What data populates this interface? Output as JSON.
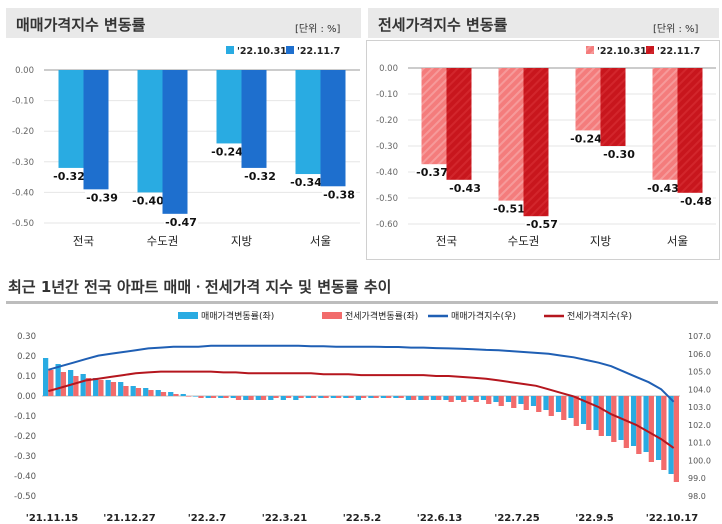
{
  "chart_data": [
    {
      "type": "bar",
      "title": "매매가격지수 변동률",
      "unit": "[단위 : %]",
      "categories": [
        "전국",
        "수도권",
        "지방",
        "서울"
      ],
      "series": [
        {
          "name": "'22.10.31",
          "values": [
            -0.32,
            -0.4,
            -0.24,
            -0.34
          ],
          "color": "#29abe2"
        },
        {
          "name": "'22.11.7",
          "values": [
            -0.39,
            -0.47,
            -0.32,
            -0.38
          ],
          "color": "#1e6fce"
        }
      ],
      "ylim": [
        -0.5,
        0.0
      ],
      "yticks": [
        "0.00",
        "-0.10",
        "-0.20",
        "-0.30",
        "-0.40",
        "-0.50"
      ],
      "legend": "top-right"
    },
    {
      "type": "bar",
      "title": "전세가격지수 변동률",
      "unit": "[단위 : %]",
      "categories": [
        "전국",
        "수도권",
        "지방",
        "서울"
      ],
      "series": [
        {
          "name": "'22.10.31",
          "values": [
            -0.37,
            -0.51,
            -0.24,
            -0.43
          ],
          "color": "#f26b6b"
        },
        {
          "name": "'22.11.7",
          "values": [
            -0.43,
            -0.57,
            -0.3,
            -0.48
          ],
          "color": "#c8161d"
        }
      ],
      "ylim": [
        -0.6,
        0.0
      ],
      "yticks": [
        "0.00",
        "-0.10",
        "-0.20",
        "-0.30",
        "-0.40",
        "-0.50",
        "-0.60"
      ],
      "legend": "top-right"
    },
    {
      "type": "bar+line",
      "title": "최근 1년간 전국 아파트 매매ㆍ전세가격 지수 및 변동률 추이",
      "xtick_labels": [
        "'21.11.15",
        "'21.12.27",
        "'22.2.7",
        "'22.3.21",
        "'22.5.2",
        "'22.6.13",
        "'22.7.25",
        "'22.9.5",
        "'22.10.17"
      ],
      "ylim_left": [
        -0.5,
        0.3
      ],
      "yticks_left": [
        "0.30",
        "0.20",
        "0.10",
        "0.00",
        "-0.10",
        "-0.20",
        "-0.30",
        "-0.40",
        "-0.50"
      ],
      "ylim_right": [
        98.0,
        107.0
      ],
      "yticks_right": [
        "107.0",
        "106.0",
        "105.0",
        "104.0",
        "103.0",
        "102.0",
        "101.0",
        "100.0",
        "99.0",
        "98.0"
      ],
      "legend": "top",
      "series": [
        {
          "name": "매매가격변동률(좌)",
          "kind": "bar",
          "axis": "left",
          "color": "#29abe2",
          "values": [
            0.19,
            0.16,
            0.13,
            0.11,
            0.09,
            0.08,
            0.07,
            0.05,
            0.04,
            0.03,
            0.02,
            0.01,
            0.0,
            -0.01,
            -0.01,
            -0.01,
            -0.02,
            -0.02,
            -0.02,
            -0.02,
            -0.02,
            -0.01,
            -0.01,
            -0.01,
            -0.01,
            -0.02,
            -0.01,
            -0.01,
            -0.01,
            -0.02,
            -0.02,
            -0.02,
            -0.02,
            -0.02,
            -0.02,
            -0.02,
            -0.03,
            -0.03,
            -0.04,
            -0.05,
            -0.07,
            -0.08,
            -0.11,
            -0.14,
            -0.17,
            -0.2,
            -0.22,
            -0.25,
            -0.28,
            -0.32,
            -0.39
          ]
        },
        {
          "name": "전세가격변동률(좌)",
          "kind": "bar",
          "axis": "left",
          "color": "#f26b6b",
          "values": [
            0.13,
            0.12,
            0.1,
            0.09,
            0.08,
            0.07,
            0.05,
            0.04,
            0.03,
            0.02,
            0.01,
            0.0,
            -0.01,
            -0.01,
            -0.01,
            -0.02,
            -0.02,
            -0.02,
            -0.01,
            -0.01,
            -0.01,
            -0.01,
            -0.01,
            -0.01,
            -0.01,
            -0.01,
            -0.01,
            -0.01,
            -0.01,
            -0.02,
            -0.02,
            -0.02,
            -0.03,
            -0.03,
            -0.03,
            -0.04,
            -0.05,
            -0.06,
            -0.07,
            -0.08,
            -0.1,
            -0.12,
            -0.15,
            -0.17,
            -0.2,
            -0.23,
            -0.26,
            -0.29,
            -0.33,
            -0.37,
            -0.43
          ]
        },
        {
          "name": "매매가격지수(우)",
          "kind": "line",
          "axis": "right",
          "color": "#1f5fb4",
          "values": [
            105.1,
            105.3,
            105.5,
            105.7,
            105.9,
            106.0,
            106.1,
            106.2,
            106.3,
            106.35,
            106.4,
            106.4,
            106.4,
            106.45,
            106.45,
            106.45,
            106.45,
            106.45,
            106.45,
            106.45,
            106.45,
            106.42,
            106.42,
            106.4,
            106.4,
            106.4,
            106.4,
            106.38,
            106.38,
            106.35,
            106.35,
            106.32,
            106.3,
            106.28,
            106.25,
            106.22,
            106.2,
            106.15,
            106.1,
            106.05,
            106.0,
            105.9,
            105.8,
            105.65,
            105.5,
            105.3,
            105.0,
            104.7,
            104.4,
            104.0,
            103.3
          ]
        },
        {
          "name": "전세가격지수(우)",
          "kind": "line",
          "axis": "right",
          "color": "#b5161e",
          "values": [
            103.9,
            104.1,
            104.3,
            104.5,
            104.6,
            104.7,
            104.8,
            104.9,
            104.95,
            105.0,
            105.0,
            105.0,
            105.0,
            105.0,
            104.95,
            104.95,
            104.9,
            104.9,
            104.9,
            104.9,
            104.9,
            104.9,
            104.85,
            104.85,
            104.85,
            104.8,
            104.8,
            104.8,
            104.8,
            104.8,
            104.8,
            104.75,
            104.75,
            104.7,
            104.65,
            104.6,
            104.5,
            104.4,
            104.3,
            104.2,
            104.0,
            103.8,
            103.6,
            103.3,
            103.0,
            102.6,
            102.3,
            102.0,
            101.6,
            101.2,
            100.7
          ]
        }
      ]
    }
  ],
  "legend_marks": {
    "c1": [
      "'22.10.31",
      "'22.11.7"
    ],
    "c2": [
      "'22.10.31",
      "'22.11.7"
    ]
  }
}
